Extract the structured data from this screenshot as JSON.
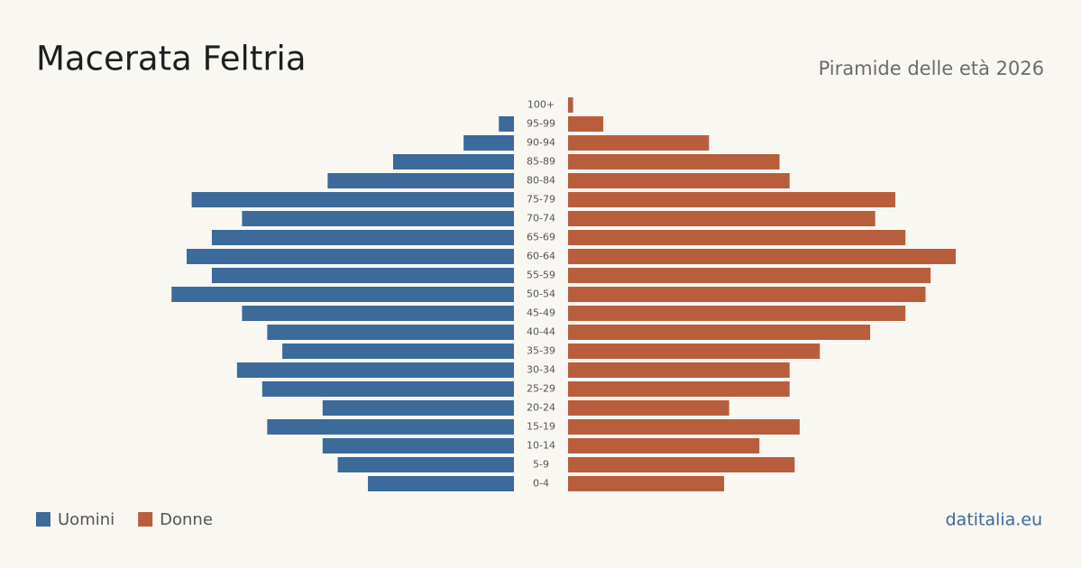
{
  "chart_data": {
    "type": "population-pyramid",
    "title": "Macerata Feltria",
    "subtitle": "Piramide delle età 2026",
    "source": "datitalia.eu",
    "categories": [
      "100+",
      "95-99",
      "90-94",
      "85-89",
      "80-84",
      "75-79",
      "70-74",
      "65-69",
      "60-64",
      "55-59",
      "50-54",
      "45-49",
      "40-44",
      "35-39",
      "30-34",
      "25-29",
      "20-24",
      "15-19",
      "10-14",
      "5-9",
      "0-4"
    ],
    "series": [
      {
        "name": "Uomini",
        "color": "#3b6a9b",
        "side": "left",
        "values": [
          0,
          3,
          10,
          24,
          37,
          64,
          54,
          60,
          65,
          60,
          68,
          54,
          49,
          46,
          55,
          50,
          38,
          49,
          38,
          35,
          29
        ]
      },
      {
        "name": "Donne",
        "color": "#b95e3d",
        "side": "right",
        "values": [
          1,
          7,
          28,
          42,
          44,
          65,
          61,
          67,
          77,
          72,
          71,
          67,
          60,
          50,
          44,
          44,
          32,
          46,
          38,
          45,
          31
        ]
      }
    ],
    "xlim": [
      0,
      77
    ],
    "legend": "bottom-left"
  }
}
